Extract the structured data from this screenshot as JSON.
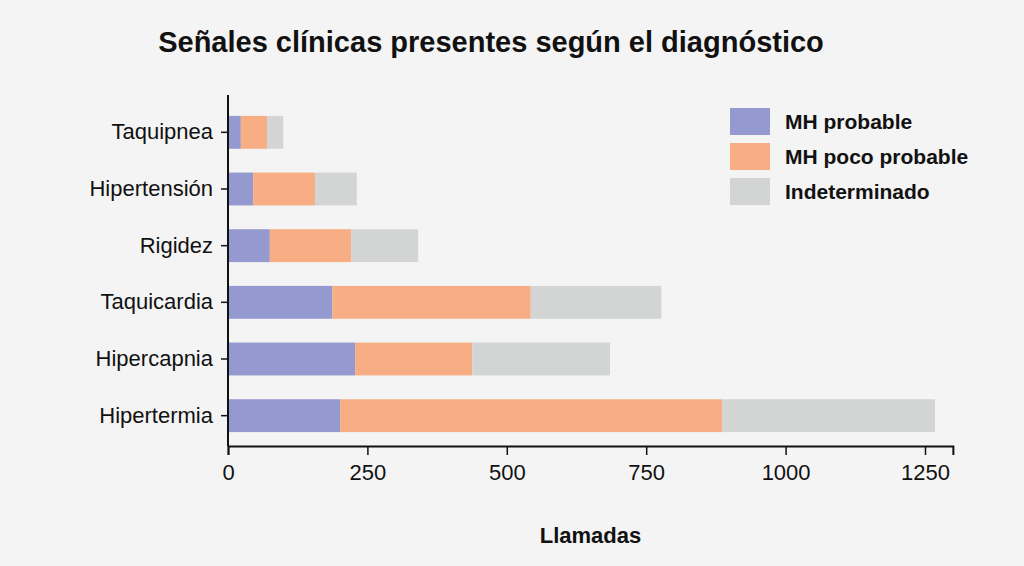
{
  "chart_data": {
    "type": "bar",
    "orientation": "horizontal",
    "stacked": true,
    "title": "Señales clínicas presentes según el diagnóstico",
    "x_label": "Llamadas",
    "categories": [
      "Taquipnea",
      "Hipertensión",
      "Rigidez",
      "Taquicardia",
      "Hipercapnia",
      "Hipertermia"
    ],
    "series": [
      {
        "name": "MH probable",
        "color": "#9499cf",
        "values": [
          23,
          45,
          75,
          187,
          228,
          201
        ]
      },
      {
        "name": "MH poco probable",
        "color": "#f8ae84",
        "values": [
          47,
          111,
          146,
          356,
          210,
          685
        ]
      },
      {
        "name": "Indeterminado",
        "color": "#d3d4d4",
        "values": [
          29,
          75,
          120,
          234,
          247,
          382
        ]
      }
    ],
    "xlim": [
      0,
      1300
    ],
    "xticks": [
      0,
      250,
      500,
      750,
      1000,
      1250
    ],
    "grid": false,
    "legend": "top-right"
  }
}
